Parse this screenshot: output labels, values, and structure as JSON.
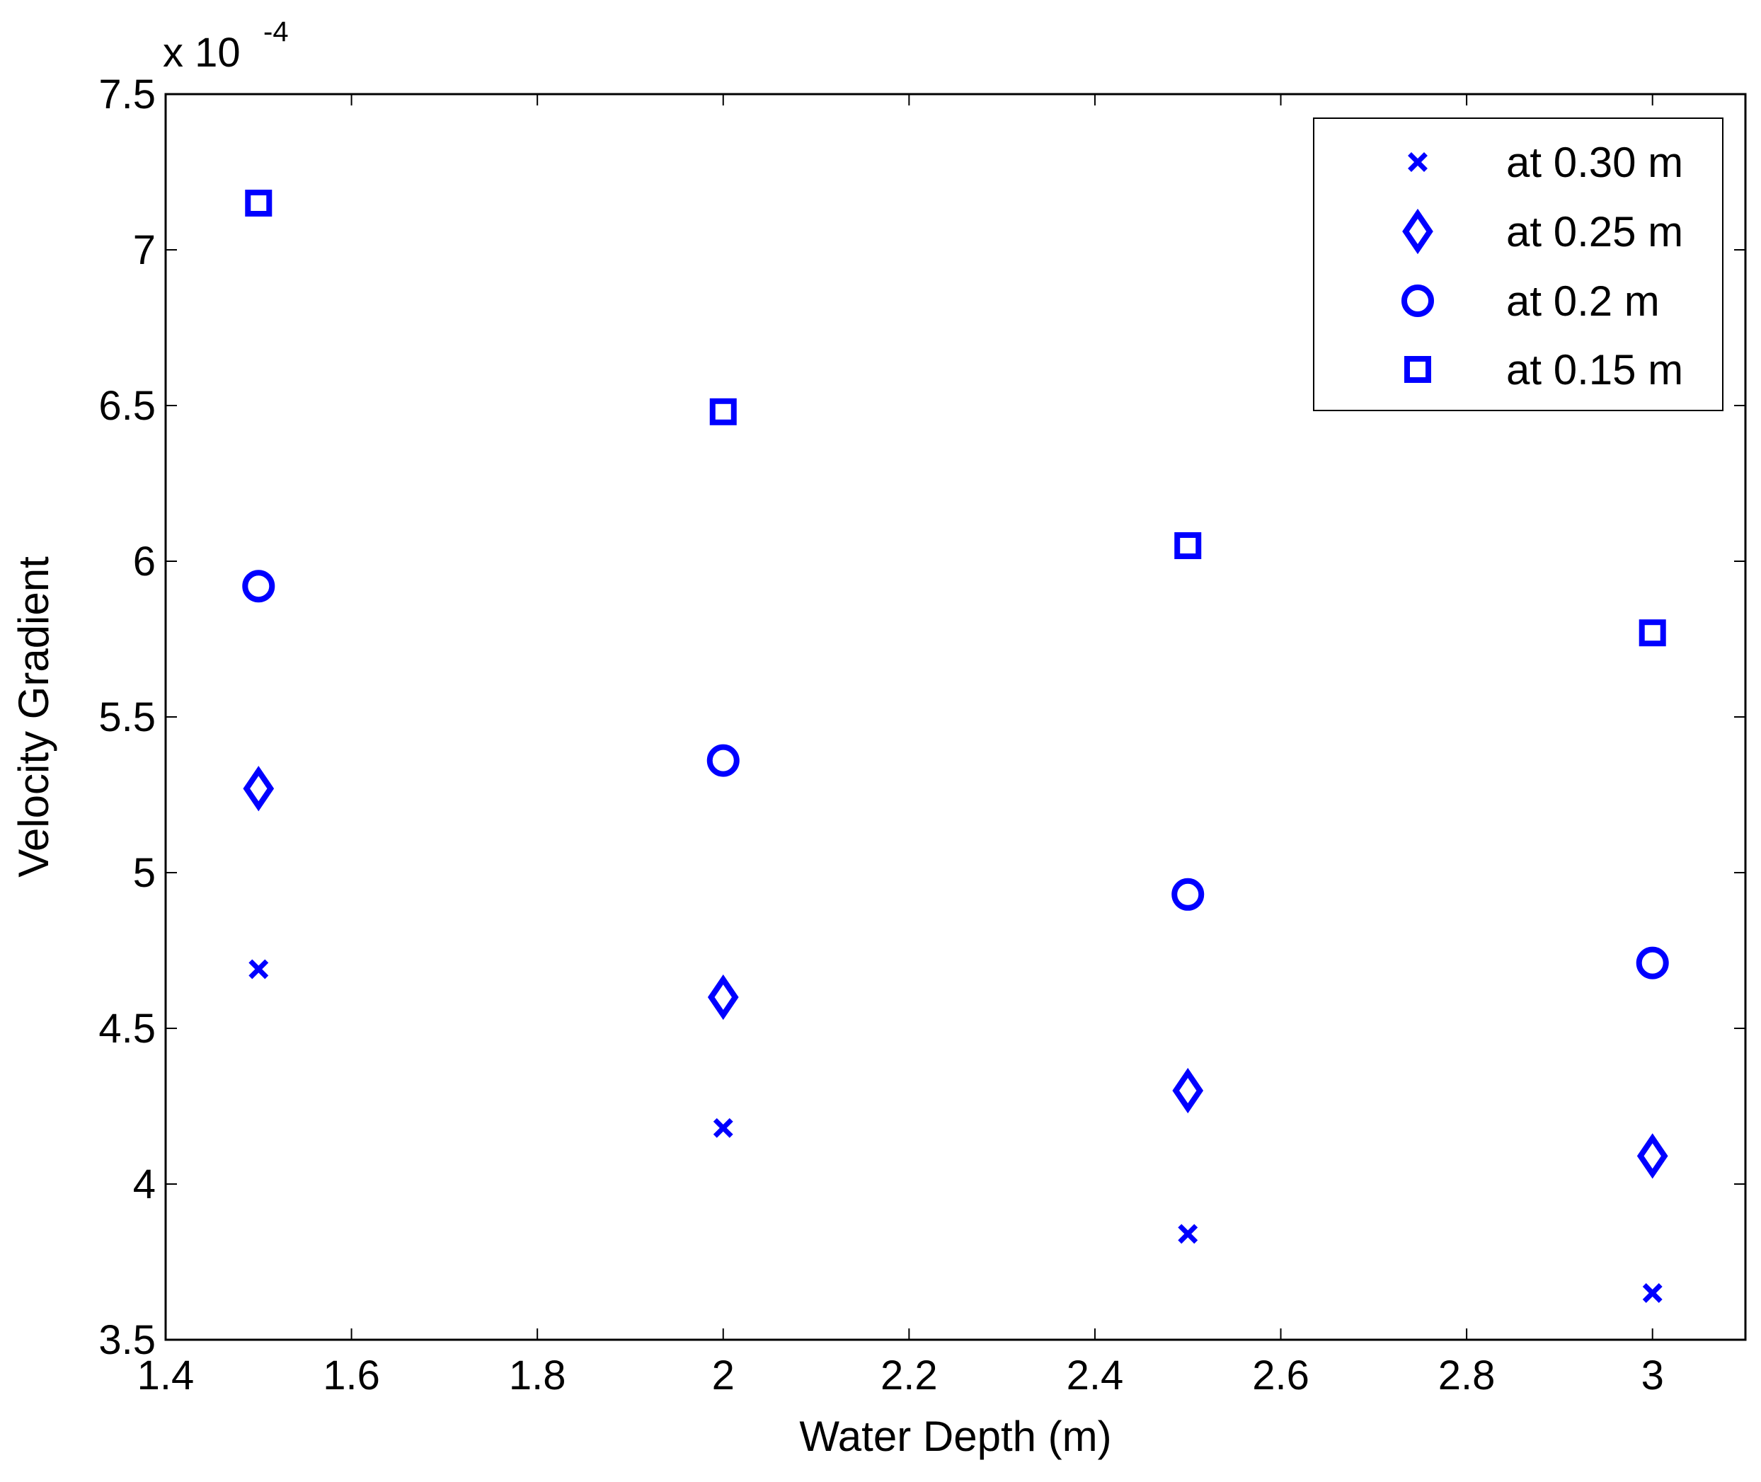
{
  "chart_data": {
    "type": "scatter",
    "title": "",
    "xlabel": "Water Depth (m)",
    "ylabel": "Velocity Gradient",
    "y_multiplier": {
      "base": "x 10",
      "exponent": "-4"
    },
    "xlim": [
      1.4,
      3.1
    ],
    "ylim": [
      3.5,
      7.5
    ],
    "x_ticks": [
      1.4,
      1.6,
      1.8,
      2.0,
      2.2,
      2.4,
      2.6,
      2.8,
      3.0
    ],
    "x_tick_labels": [
      "1.4",
      "1.6",
      "1.8",
      "2",
      "2.2",
      "2.4",
      "2.6",
      "2.8",
      "3"
    ],
    "y_ticks": [
      3.5,
      4.0,
      4.5,
      5.0,
      5.5,
      6.0,
      6.5,
      7.0,
      7.5
    ],
    "y_tick_labels": [
      "3.5",
      "4",
      "4.5",
      "5",
      "5.5",
      "6",
      "6.5",
      "7",
      "7.5"
    ],
    "grid": false,
    "legend_position": "top-right",
    "marker_color": "#0000ff",
    "x": [
      1.5,
      2.0,
      2.5,
      3.0
    ],
    "series": [
      {
        "name": "at 0.30 m",
        "marker": "x-mark",
        "values": [
          4.69,
          4.18,
          3.84,
          3.65
        ]
      },
      {
        "name": "at 0.25 m",
        "marker": "diamond",
        "values": [
          5.27,
          4.6,
          4.3,
          4.09
        ]
      },
      {
        "name": "at 0.2 m",
        "marker": "circle",
        "values": [
          5.92,
          5.36,
          4.93,
          4.71
        ]
      },
      {
        "name": "at 0.15 m",
        "marker": "square",
        "values": [
          7.15,
          6.48,
          6.05,
          5.77
        ]
      }
    ]
  }
}
